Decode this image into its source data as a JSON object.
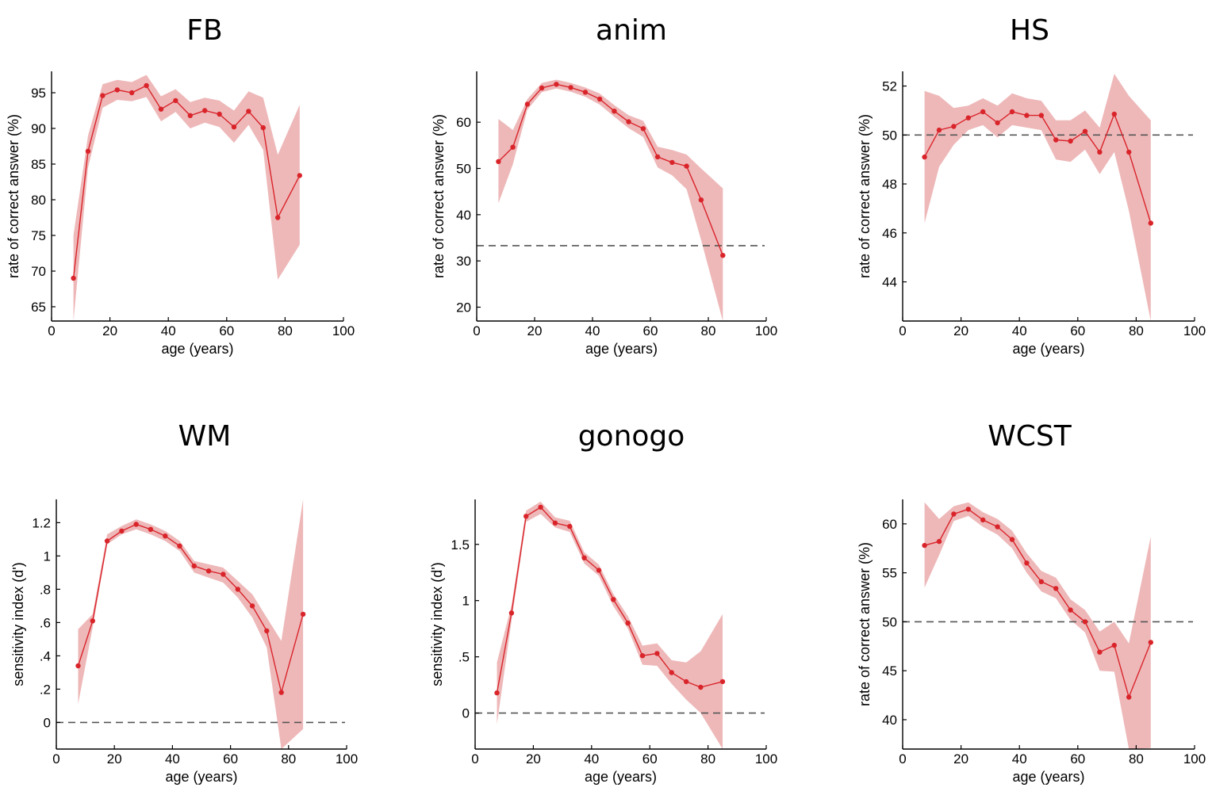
{
  "colors": {
    "line": "#d9242a",
    "band": "#e8a0a2",
    "reference": "#555555"
  },
  "chart_data": [
    {
      "type": "line",
      "title": "FB",
      "xlabel": "age (years)",
      "ylabel": "rate of correct answer (%)",
      "xlim": [
        0,
        100
      ],
      "ylim": [
        63,
        98
      ],
      "xticks": [
        0,
        20,
        40,
        60,
        80,
        100
      ],
      "xtick_labels": [
        "0",
        "20",
        "40",
        "60",
        "80",
        "100"
      ],
      "yticks": [
        65,
        70,
        75,
        80,
        85,
        90,
        95
      ],
      "ytick_labels": [
        "65",
        "70",
        "75",
        "80",
        "85",
        "90",
        "95"
      ],
      "reference_line": null,
      "x": [
        7.5,
        12.5,
        17.5,
        22.5,
        27.5,
        32.5,
        37.5,
        42.5,
        47.5,
        52.5,
        57.5,
        62.5,
        67.5,
        72.5,
        77.5,
        85
      ],
      "y": [
        69.0,
        86.8,
        94.6,
        95.4,
        95.0,
        96.0,
        92.7,
        93.9,
        91.8,
        92.5,
        92.0,
        90.2,
        92.4,
        90.1,
        77.5,
        83.4
      ],
      "lower": [
        63.0,
        84.5,
        92.9,
        94.0,
        93.8,
        94.4,
        91.0,
        92.3,
        90.0,
        90.8,
        90.2,
        88.0,
        90.5,
        87.0,
        68.8,
        73.7
      ],
      "upper": [
        75.0,
        89.0,
        96.2,
        96.8,
        96.5,
        97.5,
        94.5,
        95.5,
        93.7,
        94.3,
        93.9,
        92.5,
        95.2,
        94.3,
        86.3,
        93.3
      ]
    },
    {
      "type": "line",
      "title": "anim",
      "xlabel": "age (years)",
      "ylabel": "rate of correct answer (%)",
      "xlim": [
        0,
        100
      ],
      "ylim": [
        17,
        71
      ],
      "xticks": [
        0,
        20,
        40,
        60,
        80,
        100
      ],
      "xtick_labels": [
        "0",
        "20",
        "40",
        "60",
        "80",
        "100"
      ],
      "yticks": [
        20,
        30,
        40,
        50,
        60
      ],
      "ytick_labels": [
        "20",
        "30",
        "40",
        "50",
        "60"
      ],
      "reference_line": 33.3,
      "x": [
        7.5,
        12.5,
        17.5,
        22.5,
        27.5,
        32.5,
        37.5,
        42.5,
        47.5,
        52.5,
        57.5,
        62.5,
        67.5,
        72.5,
        77.5,
        85
      ],
      "y": [
        51.5,
        54.6,
        63.9,
        67.4,
        68.2,
        67.5,
        66.5,
        65.0,
        62.4,
        60.1,
        58.6,
        52.5,
        51.3,
        50.5,
        43.2,
        31.2
      ],
      "lower": [
        42.5,
        50.9,
        62.7,
        66.5,
        67.3,
        66.6,
        65.5,
        63.8,
        61.2,
        58.7,
        56.8,
        50.2,
        48.5,
        45.5,
        34.5,
        17.0
      ],
      "upper": [
        60.7,
        58.3,
        65.0,
        68.5,
        69.2,
        68.5,
        67.5,
        66.2,
        63.7,
        61.5,
        60.3,
        54.7,
        54.0,
        53.0,
        50.0,
        45.7
      ]
    },
    {
      "type": "line",
      "title": "HS",
      "xlabel": "age (years)",
      "ylabel": "rate of correct answer (%)",
      "xlim": [
        0,
        100
      ],
      "ylim": [
        42.4,
        52.6
      ],
      "xticks": [
        0,
        20,
        40,
        60,
        80,
        100
      ],
      "xtick_labels": [
        "0",
        "20",
        "40",
        "60",
        "80",
        "100"
      ],
      "yticks": [
        44,
        46,
        48,
        50,
        52
      ],
      "ytick_labels": [
        "44",
        "46",
        "48",
        "50",
        "52"
      ],
      "reference_line": 50,
      "x": [
        7.5,
        12.5,
        17.5,
        22.5,
        27.5,
        32.5,
        37.5,
        42.5,
        47.5,
        52.5,
        57.5,
        62.5,
        67.5,
        72.5,
        77.5,
        85
      ],
      "y": [
        49.1,
        50.2,
        50.35,
        50.7,
        50.95,
        50.5,
        50.95,
        50.8,
        50.8,
        49.8,
        49.75,
        50.15,
        49.3,
        50.85,
        49.3,
        46.4
      ],
      "lower": [
        46.4,
        48.7,
        49.6,
        50.2,
        50.4,
        49.9,
        50.4,
        50.3,
        50.2,
        49.0,
        48.9,
        49.4,
        48.4,
        49.3,
        46.9,
        42.4
      ],
      "upper": [
        51.8,
        51.6,
        51.1,
        51.2,
        51.5,
        51.2,
        51.7,
        51.5,
        51.4,
        50.6,
        50.6,
        51.0,
        50.3,
        52.5,
        51.6,
        50.6
      ]
    },
    {
      "type": "line",
      "title": "WM",
      "xlabel": "age (years)",
      "ylabel": "sensitivity index (d')",
      "xlim": [
        0,
        100
      ],
      "ylim": [
        -0.16,
        1.34
      ],
      "xticks": [
        0,
        20,
        40,
        60,
        80,
        100
      ],
      "xtick_labels": [
        "0",
        "20",
        "40",
        "60",
        "80",
        "100"
      ],
      "yticks": [
        0,
        0.2,
        0.4,
        0.6,
        0.8,
        1.0,
        1.2
      ],
      "ytick_labels": [
        "0",
        ".2",
        ".4",
        ".6",
        ".8",
        "1",
        "1.2"
      ],
      "reference_line": 0,
      "x": [
        7.5,
        12.5,
        17.5,
        22.5,
        27.5,
        32.5,
        37.5,
        42.5,
        47.5,
        52.5,
        57.5,
        62.5,
        67.5,
        72.5,
        77.5,
        85
      ],
      "y": [
        0.34,
        0.61,
        1.09,
        1.15,
        1.19,
        1.16,
        1.12,
        1.06,
        0.94,
        0.91,
        0.89,
        0.8,
        0.7,
        0.55,
        0.18,
        0.65
      ],
      "lower": [
        0.11,
        0.57,
        1.07,
        1.13,
        1.16,
        1.13,
        1.09,
        1.03,
        0.9,
        0.87,
        0.84,
        0.75,
        0.63,
        0.45,
        -0.16,
        -0.04
      ],
      "upper": [
        0.56,
        0.65,
        1.13,
        1.18,
        1.22,
        1.19,
        1.15,
        1.09,
        0.97,
        0.95,
        0.93,
        0.85,
        0.77,
        0.63,
        0.49,
        1.34
      ]
    },
    {
      "type": "line",
      "title": "gonogo",
      "xlabel": "age (years)",
      "ylabel": "sensitivity index (d')",
      "xlim": [
        0,
        100
      ],
      "ylim": [
        -0.32,
        1.9
      ],
      "xticks": [
        0,
        20,
        40,
        60,
        80,
        100
      ],
      "xtick_labels": [
        "0",
        "20",
        "40",
        "60",
        "80",
        "100"
      ],
      "yticks": [
        0,
        0.5,
        1.0,
        1.5
      ],
      "ytick_labels": [
        "0",
        ".5",
        "1",
        "1.5"
      ],
      "reference_line": 0,
      "x": [
        7.5,
        12.5,
        17.5,
        22.5,
        27.5,
        32.5,
        37.5,
        42.5,
        47.5,
        52.5,
        57.5,
        62.5,
        67.5,
        72.5,
        77.5,
        85
      ],
      "y": [
        0.18,
        0.89,
        1.75,
        1.83,
        1.69,
        1.66,
        1.38,
        1.27,
        1.01,
        0.8,
        0.51,
        0.53,
        0.36,
        0.28,
        0.23,
        0.28
      ],
      "lower": [
        -0.1,
        0.82,
        1.7,
        1.77,
        1.65,
        1.61,
        1.33,
        1.22,
        0.95,
        0.75,
        0.43,
        0.42,
        0.26,
        0.12,
        0.0,
        -0.32
      ],
      "upper": [
        0.45,
        0.96,
        1.8,
        1.88,
        1.74,
        1.71,
        1.43,
        1.32,
        1.06,
        0.86,
        0.6,
        0.62,
        0.47,
        0.45,
        0.55,
        0.88
      ]
    },
    {
      "type": "line",
      "title": "WCST",
      "xlabel": "age (years)",
      "ylabel": "rate of correct answer (%)",
      "xlim": [
        0,
        100
      ],
      "ylim": [
        37,
        62.5
      ],
      "xticks": [
        0,
        20,
        40,
        60,
        80,
        100
      ],
      "xtick_labels": [
        "0",
        "20",
        "40",
        "60",
        "80",
        "100"
      ],
      "yticks": [
        40,
        45,
        50,
        55,
        60
      ],
      "ytick_labels": [
        "40",
        "45",
        "50",
        "55",
        "60"
      ],
      "reference_line": 50,
      "x": [
        7.5,
        12.5,
        17.5,
        22.5,
        27.5,
        32.5,
        37.5,
        42.5,
        47.5,
        52.5,
        57.5,
        62.5,
        67.5,
        72.5,
        77.5,
        85
      ],
      "y": [
        57.8,
        58.2,
        61.0,
        61.5,
        60.4,
        59.7,
        58.4,
        56.0,
        54.1,
        53.4,
        51.2,
        50.0,
        46.9,
        47.6,
        42.3,
        47.9
      ],
      "lower": [
        53.5,
        56.8,
        60.3,
        60.8,
        59.7,
        58.9,
        57.5,
        55.0,
        53.1,
        52.4,
        50.2,
        48.9,
        45.0,
        44.9,
        37.0,
        37.1
      ],
      "upper": [
        62.2,
        60.5,
        61.8,
        62.2,
        61.2,
        60.5,
        59.3,
        57.0,
        55.2,
        54.5,
        52.3,
        51.2,
        49.0,
        50.0,
        47.8,
        58.7
      ]
    }
  ]
}
